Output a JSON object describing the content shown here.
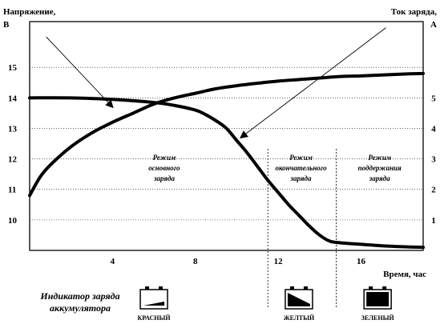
{
  "chart_data": {
    "type": "line",
    "title": "",
    "y_left_label": [
      "Напряжение,",
      "В"
    ],
    "y_right_label": [
      "Ток заряда,",
      "А"
    ],
    "x_label": "Время, час",
    "xlim": [
      0,
      19
    ],
    "x_ticks": [
      4,
      8,
      12,
      16
    ],
    "y_left_lim": [
      9,
      16.5
    ],
    "y_left_ticks": [
      10,
      11,
      12,
      13,
      14,
      15
    ],
    "y_right_lim": [
      0,
      7.5
    ],
    "y_right_ticks": [
      1,
      2,
      3,
      4,
      5
    ],
    "grid": "horizontal-dotted",
    "series": [
      {
        "axis": "left",
        "x": [
          0,
          0.5,
          1,
          2,
          3,
          4,
          5,
          6,
          7,
          8,
          9,
          10,
          11,
          12,
          13,
          14,
          15,
          16,
          17,
          18,
          19
        ],
        "y": [
          10.8,
          11.4,
          11.8,
          12.4,
          12.85,
          13.2,
          13.5,
          13.8,
          14.0,
          14.15,
          14.3,
          14.4,
          14.48,
          14.55,
          14.6,
          14.65,
          14.7,
          14.72,
          14.75,
          14.78,
          14.8
        ]
      },
      {
        "axis": "right",
        "x": [
          0,
          2,
          4,
          6,
          7,
          8,
          8.5,
          9,
          9.5,
          10,
          10.5,
          11,
          11.5,
          12,
          12.5,
          13,
          13.5,
          14,
          14.5,
          15,
          16,
          17,
          18,
          19
        ],
        "y": [
          5.0,
          5.0,
          4.95,
          4.85,
          4.75,
          4.6,
          4.45,
          4.25,
          4.0,
          3.6,
          3.2,
          2.75,
          2.3,
          1.9,
          1.5,
          1.15,
          0.8,
          0.5,
          0.3,
          0.25,
          0.2,
          0.15,
          0.12,
          0.1
        ]
      }
    ],
    "annotations": [
      {
        "x": 4.0,
        "y": 13.7,
        "axis": "left",
        "text_from": [
          0.8,
          16.0
        ]
      },
      {
        "x": 10.2,
        "y": 3.7,
        "axis": "right",
        "text_from": [
          17.2,
          7.3
        ]
      }
    ],
    "phases": [
      {
        "lines": [
          "Режим",
          "основного",
          "заряда"
        ],
        "x": 6.5
      },
      {
        "lines": [
          "Режим",
          "окончательного",
          "заряда"
        ],
        "x": 13.1,
        "divider_x": 11.5
      },
      {
        "lines": [
          "Режим",
          "поддержания",
          "заряда"
        ],
        "x": 16.9,
        "divider_x": 14.8
      }
    ]
  },
  "indicator": {
    "title_lines": [
      "Индикатор заряда",
      "аккумулятора"
    ],
    "states": [
      {
        "label": "КРАСНЫЙ",
        "fill": "low",
        "x": 6.0
      },
      {
        "label": "ЖЕЛТЫЙ",
        "fill": "mid",
        "x": 13.0
      },
      {
        "label": "ЗЕЛЕНЫЙ",
        "fill": "full",
        "x": 16.8
      }
    ]
  }
}
